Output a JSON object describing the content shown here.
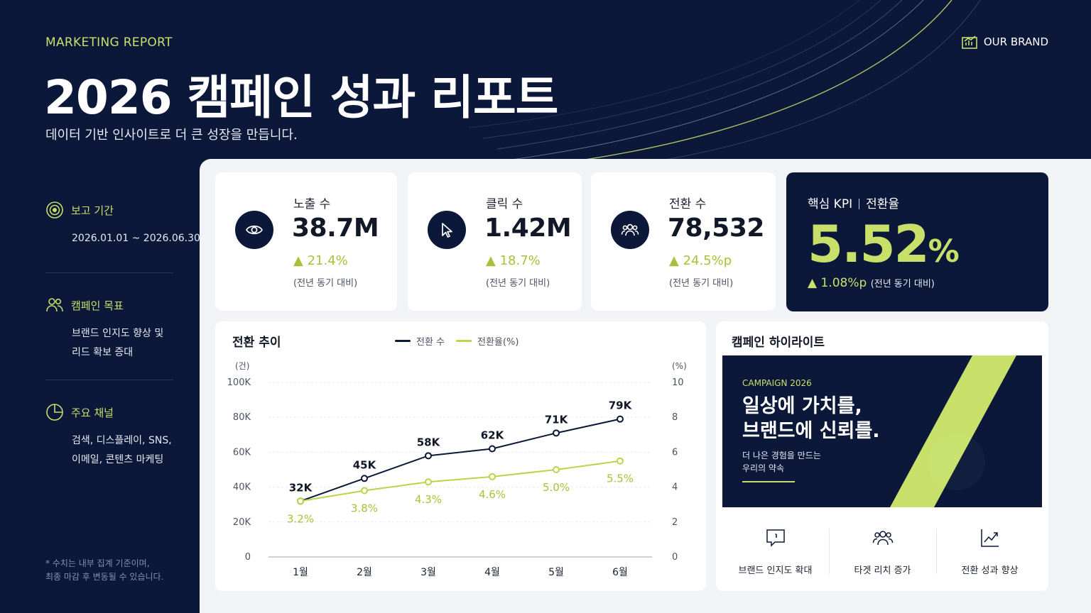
{
  "header": {
    "eyebrow": "MARKETING REPORT",
    "title": "2026 캠페인 성과 리포트",
    "subtitle": "데이터 기반 인사이트로 더 큰 성장을 만듭니다.",
    "brand": "OUR BRAND",
    "brand_icon": "bar-chart-icon"
  },
  "sidebar": {
    "period": {
      "icon": "target-icon",
      "label": "보고 기간",
      "value": "2026.01.01 ~ 2026.06.30"
    },
    "goal": {
      "icon": "users-icon",
      "label": "캠페인 목표",
      "line1": "브랜드 인지도 향상 및",
      "line2": "리드 확보 증대"
    },
    "channels": {
      "icon": "pie-chart-icon",
      "label": "주요 채널",
      "line1": "검색, 디스플레이, SNS,",
      "line2": "이메일, 콘텐츠 마케팅"
    },
    "note_line1": "* 수치는 내부 집계 기준이며,",
    "note_line2": "최종 마감 후 변동될 수 있습니다."
  },
  "kpis": [
    {
      "icon": "eye-icon",
      "label": "노출 수",
      "value": "38.7M",
      "change": "▲ 21.4%",
      "note": "(전년 동기 대비)"
    },
    {
      "icon": "cursor-icon",
      "label": "클릭 수",
      "value": "1.42M",
      "change": "▲ 18.7%",
      "note": "(전년 동기 대비)"
    },
    {
      "icon": "users-icon",
      "label": "전환 수",
      "value": "78,532",
      "change": "▲ 24.5%p",
      "note": "(전년 동기 대비)"
    }
  ],
  "core_kpi": {
    "label_a": "핵심 KPI",
    "label_b": "전환율",
    "value": "5.52",
    "unit": "%",
    "change": "▲ 1.08%p",
    "note": "(전년 동기 대비)"
  },
  "chart_data": {
    "type": "line",
    "title": "전환 추이",
    "categories": [
      "1월",
      "2월",
      "3월",
      "4월",
      "5월",
      "6월"
    ],
    "series": [
      {
        "name": "전환 수",
        "axis": "left",
        "values": [
          32000,
          45000,
          58000,
          62000,
          71000,
          79000
        ],
        "labels": [
          "32K",
          "45K",
          "58K",
          "62K",
          "71K",
          "79K"
        ],
        "color": "#0b1839"
      },
      {
        "name": "전환율(%)",
        "axis": "right",
        "values": [
          3.2,
          3.8,
          4.3,
          4.6,
          5.0,
          5.5
        ],
        "labels": [
          "3.2%",
          "3.8%",
          "4.3%",
          "4.6%",
          "5.0%",
          "5.5%"
        ],
        "color": "#bcd34a"
      }
    ],
    "y_left": {
      "unit_label": "(건)",
      "ticks": [
        "0",
        "20K",
        "40K",
        "60K",
        "80K",
        "100K"
      ],
      "range": [
        0,
        100000
      ]
    },
    "y_right": {
      "unit_label": "(%)",
      "ticks": [
        "0",
        "2",
        "4",
        "6",
        "8",
        "10"
      ],
      "range": [
        0,
        10
      ]
    },
    "grid": true,
    "legend_placement": "top"
  },
  "highlights": {
    "title": "캠페인 하이라이트",
    "banner": {
      "eyebrow": "CAMPAIGN 2026",
      "headline1": "일상에 가치를,",
      "headline2": "브랜드에 신뢰를.",
      "sub1": "더 나은 경험을 만드는",
      "sub2": "우리의 약속"
    },
    "items": [
      {
        "icon": "chat-icon",
        "label": "브랜드 인지도 확대"
      },
      {
        "icon": "users-icon",
        "label": "타겟 리치 증가"
      },
      {
        "icon": "trend-up-icon",
        "label": "전환 성과 향상"
      }
    ]
  },
  "colors": {
    "navy": "#0b1839",
    "accent": "#c8e06a",
    "panel": "#f2f3f6"
  }
}
